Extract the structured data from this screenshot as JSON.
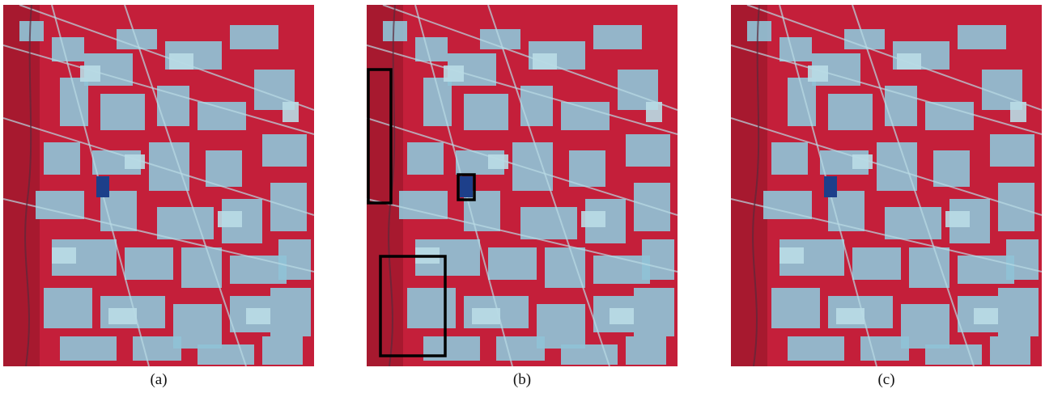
{
  "figure": {
    "panels": [
      {
        "id": "a",
        "caption": "(a)",
        "highlight_boxes": false
      },
      {
        "id": "b",
        "caption": "(b)",
        "highlight_boxes": true
      },
      {
        "id": "c",
        "caption": "(c)",
        "highlight_boxes": false
      }
    ],
    "colors": {
      "vegetation": "#c41f3a",
      "vegetation_dark": "#8f1426",
      "cleared_land": "#8fc2d6",
      "cleared_land_light": "#b9dbe5",
      "water": "#1d3f8a",
      "box_outline": "#000000"
    }
  }
}
